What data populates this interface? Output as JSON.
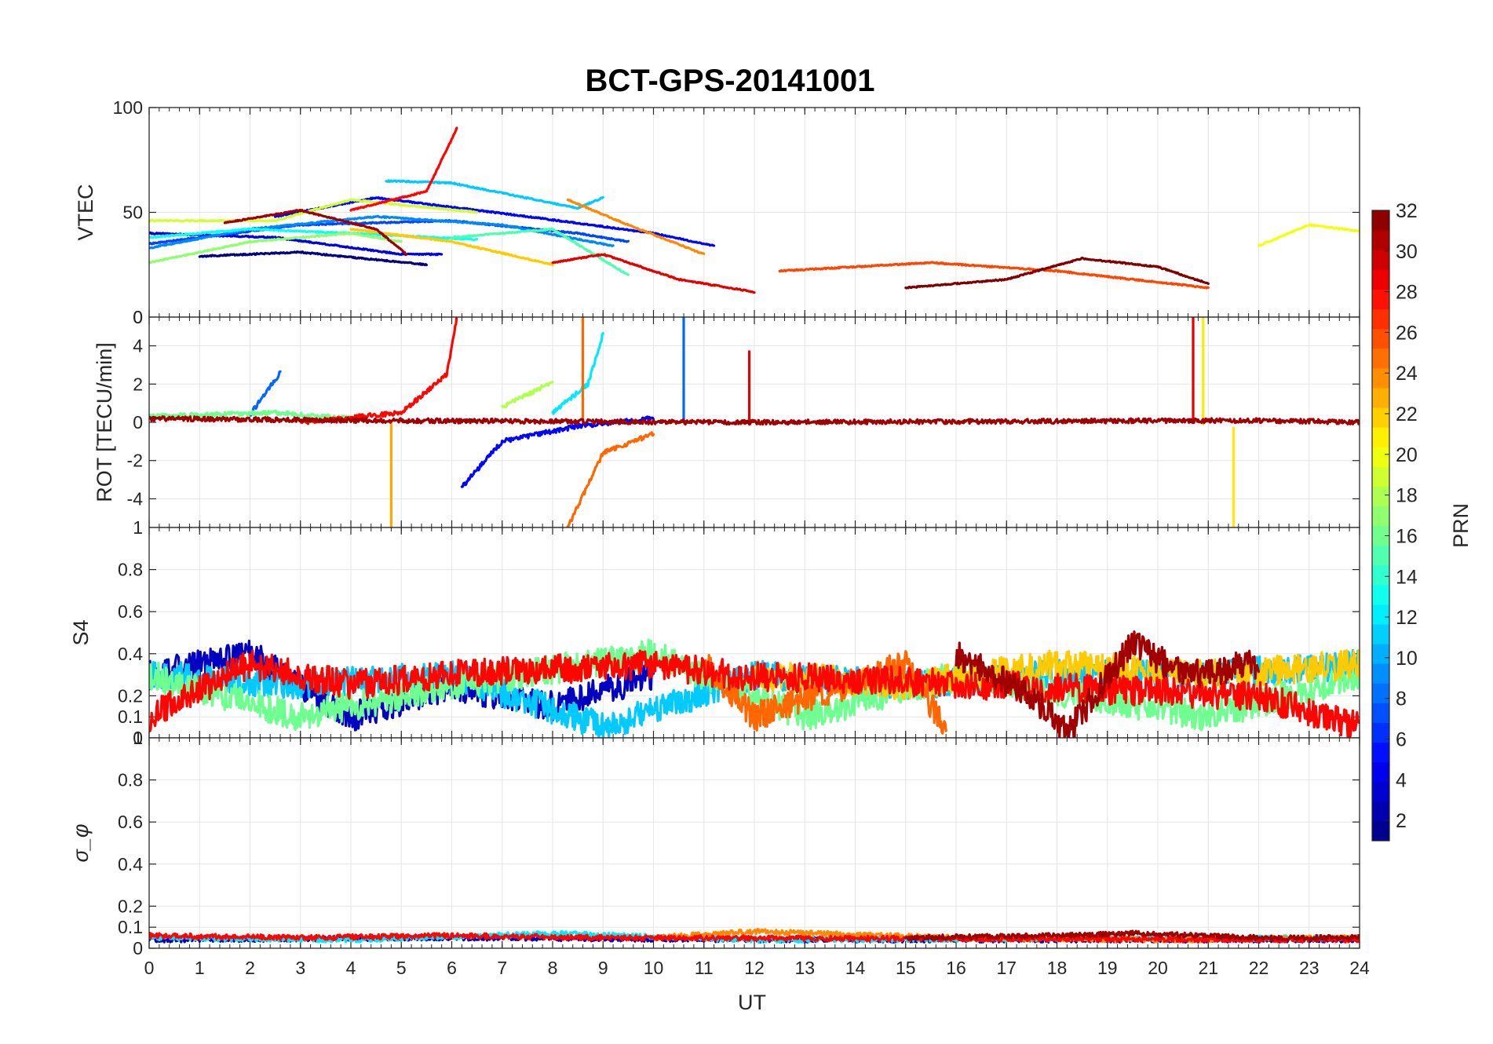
{
  "chart_data": {
    "type": "line",
    "title": "BCT-GPS-20141001",
    "xlabel": "UT",
    "xlim": [
      0,
      24
    ],
    "x_ticks": [
      "0",
      "1",
      "2",
      "3",
      "4",
      "5",
      "6",
      "7",
      "8",
      "9",
      "10",
      "11",
      "12",
      "13",
      "14",
      "15",
      "16",
      "17",
      "18",
      "19",
      "20",
      "21",
      "22",
      "23",
      "24"
    ],
    "grid": true,
    "colorbar": {
      "label": "PRN",
      "range": [
        1,
        32
      ],
      "ticks": [
        "2",
        "4",
        "6",
        "8",
        "10",
        "12",
        "14",
        "16",
        "18",
        "20",
        "22",
        "24",
        "26",
        "28",
        "30",
        "32"
      ],
      "colormap": "jet",
      "placement": "right"
    },
    "panels": [
      {
        "name": "vtec",
        "ylabel": "VTEC",
        "ylim": [
          0,
          100
        ],
        "y_ticks": [
          "0",
          "50",
          "100"
        ],
        "series": [
          {
            "prn": 1,
            "x": [
              1.0,
              3.0,
              5.5
            ],
            "y": [
              29,
              31,
              25
            ]
          },
          {
            "prn": 4,
            "x": [
              0.0,
              2.5,
              5.0,
              5.8
            ],
            "y": [
              40,
              38,
              30,
              30
            ]
          },
          {
            "prn": 5,
            "x": [
              2.5,
              4.5,
              7.5,
              10.0,
              11.2
            ],
            "y": [
              48,
              57,
              48,
              40,
              34
            ]
          },
          {
            "prn": 7,
            "x": [
              0.0,
              3.0,
              6.0,
              8.5,
              9.5
            ],
            "y": [
              35,
              44,
              46,
              40,
              36
            ]
          },
          {
            "prn": 9,
            "x": [
              0.0,
              2.0,
              4.5,
              7.0,
              9.2
            ],
            "y": [
              33,
              42,
              48,
              44,
              34
            ]
          },
          {
            "prn": 11,
            "x": [
              4.7,
              6.0,
              8.5,
              9.0
            ],
            "y": [
              65,
              64,
              52,
              57
            ]
          },
          {
            "prn": 13,
            "x": [
              0.0,
              2.0,
              4.0,
              6.5
            ],
            "y": [
              38,
              42,
              40,
              37
            ]
          },
          {
            "prn": 15,
            "x": [
              6.0,
              8.0,
              9.5
            ],
            "y": [
              38,
              42,
              20
            ]
          },
          {
            "prn": 17,
            "x": [
              0.0,
              2.0,
              4.0,
              5.0
            ],
            "y": [
              26,
              36,
              40,
              36
            ]
          },
          {
            "prn": 19,
            "x": [
              0.0,
              2.5,
              4.0,
              6.5
            ],
            "y": [
              46,
              46,
              56,
              50
            ]
          },
          {
            "prn": 20,
            "x": [
              22.0,
              23.0,
              24.0
            ],
            "y": [
              34,
              44,
              41
            ]
          },
          {
            "prn": 22,
            "x": [
              4.0,
              6.0,
              8.0
            ],
            "y": [
              42,
              36,
              25
            ]
          },
          {
            "prn": 24,
            "x": [
              8.3,
              9.5,
              11.0
            ],
            "y": [
              56,
              44,
              30
            ]
          },
          {
            "prn": 26,
            "x": [
              12.5,
              15.5,
              18.0,
              21.0
            ],
            "y": [
              22,
              26,
              22,
              14
            ]
          },
          {
            "prn": 28,
            "x": [
              4.0,
              5.5,
              6.1
            ],
            "y": [
              51,
              60,
              90
            ]
          },
          {
            "prn": 29,
            "x": [
              8.0,
              9.0,
              10.5,
              12.0
            ],
            "y": [
              26,
              30,
              18,
              12
            ]
          },
          {
            "prn": 31,
            "x": [
              1.5,
              3.0,
              4.5,
              5.1
            ],
            "y": [
              45,
              51,
              42,
              30
            ]
          },
          {
            "prn": 32,
            "x": [
              15.0,
              17.0,
              18.5,
              20.0,
              21.0
            ],
            "y": [
              14,
              18,
              28,
              24,
              16
            ]
          }
        ]
      },
      {
        "name": "rot",
        "ylabel": "ROT [TECU/min]",
        "ylim": [
          -5.5,
          5.5
        ],
        "y_ticks": [
          "-4",
          "-2",
          "0",
          "2",
          "4"
        ],
        "series": [
          {
            "prn": 5,
            "x": [
              6.2,
              7.0,
              8.5,
              10.0
            ],
            "y": [
              -3.4,
              -1.0,
              -0.2,
              0.2
            ]
          },
          {
            "prn": 8,
            "x": [
              2.0,
              2.6
            ],
            "y": [
              0.4,
              2.6
            ]
          },
          {
            "prn": 8,
            "x": [
              10.6,
              10.6
            ],
            "y": [
              0.2,
              5.5
            ]
          },
          {
            "prn": 12,
            "x": [
              8.0,
              8.7,
              9.0
            ],
            "y": [
              0.5,
              2.0,
              4.6
            ]
          },
          {
            "prn": 16,
            "x": [
              0.0,
              2.5,
              4.0
            ],
            "y": [
              0.3,
              0.5,
              0.2
            ]
          },
          {
            "prn": 18,
            "x": [
              7.0,
              8.0
            ],
            "y": [
              0.8,
              2.1
            ]
          },
          {
            "prn": 21,
            "x": [
              20.9,
              20.9
            ],
            "y": [
              -0.1,
              5.5
            ]
          },
          {
            "prn": 21,
            "x": [
              21.5,
              21.5
            ],
            "y": [
              -0.3,
              -5.5
            ]
          },
          {
            "prn": 23,
            "x": [
              4.8,
              4.8
            ],
            "y": [
              -0.1,
              -5.5
            ]
          },
          {
            "prn": 25,
            "x": [
              8.3,
              9.0,
              10.0
            ],
            "y": [
              -5.5,
              -1.6,
              -0.6
            ]
          },
          {
            "prn": 25,
            "x": [
              8.6,
              8.6
            ],
            "y": [
              0.0,
              5.5
            ]
          },
          {
            "prn": 28,
            "x": [
              3.0,
              5.0,
              5.9,
              6.1
            ],
            "y": [
              0.0,
              0.5,
              2.5,
              5.5
            ]
          },
          {
            "prn": 29,
            "x": [
              11.9,
              11.9
            ],
            "y": [
              0.0,
              3.7
            ]
          },
          {
            "prn": 29,
            "x": [
              20.7,
              20.7
            ],
            "y": [
              0.0,
              5.5
            ]
          },
          {
            "prn": 31,
            "x": [
              0.0,
              4.0,
              12.0,
              22.0,
              24.0
            ],
            "y": [
              0.2,
              0.1,
              0.0,
              0.1,
              0.0
            ]
          }
        ]
      },
      {
        "name": "s4",
        "ylabel": "S4",
        "ylim": [
          0,
          1
        ],
        "y_ticks": [
          "0",
          "0.1",
          "0.2",
          "0.4",
          "0.6",
          "0.8"
        ],
        "series": [
          {
            "prn": 3,
            "x": [
              0.0,
              2.0,
              4.0,
              6.0,
              8.0,
              10.0
            ],
            "y": [
              0.3,
              0.4,
              0.1,
              0.25,
              0.15,
              0.3
            ]
          },
          {
            "prn": 11,
            "x": [
              0.0,
              3.0,
              6.0,
              9.0,
              12.0,
              15.0,
              18.0,
              21.0,
              24.0
            ],
            "y": [
              0.3,
              0.25,
              0.3,
              0.05,
              0.3,
              0.25,
              0.3,
              0.3,
              0.35
            ]
          },
          {
            "prn": 16,
            "x": [
              0.0,
              3.0,
              6.0,
              10.0,
              13.0,
              16.0,
              21.0,
              24.0
            ],
            "y": [
              0.3,
              0.1,
              0.25,
              0.4,
              0.1,
              0.3,
              0.1,
              0.3
            ]
          },
          {
            "prn": 22,
            "x": [
              12.0,
              15.0,
              18.0,
              21.0,
              24.0
            ],
            "y": [
              0.3,
              0.25,
              0.35,
              0.3,
              0.35
            ]
          },
          {
            "prn": 25,
            "x": [
              11.0,
              12.0,
              15.0,
              15.8
            ],
            "y": [
              0.35,
              0.1,
              0.35,
              0.05
            ]
          },
          {
            "prn": 28,
            "x": [
              0.0,
              2.0,
              4.0,
              6.0,
              10.0,
              11.5,
              22.0,
              24.0
            ],
            "y": [
              0.1,
              0.35,
              0.25,
              0.3,
              0.35,
              0.3,
              0.2,
              0.05
            ]
          },
          {
            "prn": 31,
            "x": [
              16.0,
              17.5,
              18.2,
              19.5,
              20.5,
              22.0
            ],
            "y": [
              0.4,
              0.2,
              0.02,
              0.45,
              0.3,
              0.35
            ]
          }
        ]
      },
      {
        "name": "sigma_phi",
        "ylabel": "σ_φ",
        "ylim": [
          0,
          1
        ],
        "y_ticks": [
          "0",
          "0.1",
          "0.2",
          "0.4",
          "0.6",
          "0.8"
        ],
        "series": [
          {
            "prn": 3,
            "x": [
              0.0,
              6.0,
              12.0,
              18.0,
              24.0
            ],
            "y": [
              0.04,
              0.05,
              0.04,
              0.04,
              0.04
            ]
          },
          {
            "prn": 12,
            "x": [
              0.0,
              4.0,
              8.0,
              12.0,
              24.0
            ],
            "y": [
              0.05,
              0.04,
              0.07,
              0.04,
              0.05
            ]
          },
          {
            "prn": 24,
            "x": [
              10.0,
              12.0,
              16.0,
              20.0,
              24.0
            ],
            "y": [
              0.05,
              0.08,
              0.05,
              0.04,
              0.05
            ]
          },
          {
            "prn": 28,
            "x": [
              0.0,
              3.0,
              6.0,
              9.0,
              24.0
            ],
            "y": [
              0.06,
              0.05,
              0.06,
              0.05,
              0.04
            ]
          },
          {
            "prn": 31,
            "x": [
              15.0,
              18.0,
              19.5,
              22.0,
              24.0
            ],
            "y": [
              0.05,
              0.06,
              0.07,
              0.05,
              0.05
            ]
          }
        ]
      }
    ]
  }
}
